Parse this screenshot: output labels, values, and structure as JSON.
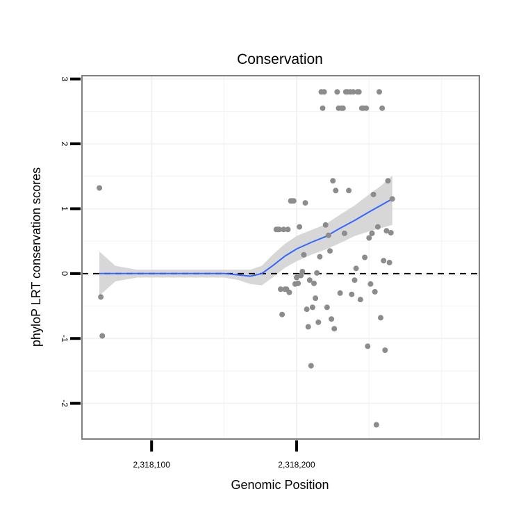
{
  "chart_data": {
    "type": "scatter",
    "title": "Conservation",
    "xlabel": "Genomic Position",
    "ylabel": "phyloP LRT conservation scores",
    "xlim": [
      2318052,
      2318326
    ],
    "ylim": [
      -2.55,
      3.05
    ],
    "x_ticks": [
      {
        "value": 2318100,
        "label": "2,318,100"
      },
      {
        "value": 2318200,
        "label": "2,318,200"
      }
    ],
    "y_ticks": [
      {
        "value": -2,
        "label": "-2"
      },
      {
        "value": -1,
        "label": "-1"
      },
      {
        "value": 0,
        "label": "0"
      },
      {
        "value": 1,
        "label": "1"
      },
      {
        "value": 2,
        "label": "2"
      },
      {
        "value": 3,
        "label": "3"
      }
    ],
    "grid": true,
    "reference_line": {
      "y": 0,
      "style": "dashed",
      "color": "#000000"
    },
    "colors": {
      "points": "#8c8c8c",
      "smooth_line": "#3366ff",
      "ribbon": "#d3d3d3",
      "grid": "#f2f2f2",
      "panel_border": "#7f7f7f"
    },
    "points": [
      {
        "x": 2318064,
        "y": 1.32
      },
      {
        "x": 2318065,
        "y": -0.36
      },
      {
        "x": 2318066,
        "y": -0.96
      },
      {
        "x": 2318186,
        "y": 0.68
      },
      {
        "x": 2318187,
        "y": 0.68
      },
      {
        "x": 2318188,
        "y": 0.68
      },
      {
        "x": 2318189,
        "y": -0.24
      },
      {
        "x": 2318190,
        "y": -0.63
      },
      {
        "x": 2318191,
        "y": 0.68
      },
      {
        "x": 2318192,
        "y": -0.24
      },
      {
        "x": 2318193,
        "y": -0.24
      },
      {
        "x": 2318194,
        "y": 0.68
      },
      {
        "x": 2318195,
        "y": -0.29
      },
      {
        "x": 2318196,
        "y": 1.12
      },
      {
        "x": 2318197,
        "y": 1.12
      },
      {
        "x": 2318198,
        "y": 1.12
      },
      {
        "x": 2318199,
        "y": -0.16
      },
      {
        "x": 2318200,
        "y": -0.06
      },
      {
        "x": 2318201,
        "y": -0.15
      },
      {
        "x": 2318202,
        "y": 0.72
      },
      {
        "x": 2318203,
        "y": -0.03
      },
      {
        "x": 2318204,
        "y": 0.03
      },
      {
        "x": 2318205,
        "y": 0.29
      },
      {
        "x": 2318206,
        "y": 1.09
      },
      {
        "x": 2318207,
        "y": -0.55
      },
      {
        "x": 2318208,
        "y": -0.82
      },
      {
        "x": 2318209,
        "y": -0.1
      },
      {
        "x": 2318210,
        "y": -1.42
      },
      {
        "x": 2318211,
        "y": -0.52
      },
      {
        "x": 2318212,
        "y": -0.15
      },
      {
        "x": 2318213,
        "y": -0.38
      },
      {
        "x": 2318214,
        "y": 0.01
      },
      {
        "x": 2318215,
        "y": -0.75
      },
      {
        "x": 2318216,
        "y": 0.26
      },
      {
        "x": 2318217,
        "y": 2.8
      },
      {
        "x": 2318218,
        "y": 2.55
      },
      {
        "x": 2318219,
        "y": 2.8
      },
      {
        "x": 2318220,
        "y": 0.75
      },
      {
        "x": 2318221,
        "y": -0.52
      },
      {
        "x": 2318222,
        "y": 0.59
      },
      {
        "x": 2318223,
        "y": 0.35
      },
      {
        "x": 2318224,
        "y": -0.7
      },
      {
        "x": 2318225,
        "y": 1.43
      },
      {
        "x": 2318226,
        "y": -0.85
      },
      {
        "x": 2318227,
        "y": 1.28
      },
      {
        "x": 2318228,
        "y": 2.8
      },
      {
        "x": 2318229,
        "y": 2.55
      },
      {
        "x": 2318230,
        "y": -0.3
      },
      {
        "x": 2318231,
        "y": 2.55
      },
      {
        "x": 2318232,
        "y": 2.55
      },
      {
        "x": 2318233,
        "y": 0.62
      },
      {
        "x": 2318234,
        "y": 2.8
      },
      {
        "x": 2318235,
        "y": 2.8
      },
      {
        "x": 2318236,
        "y": 1.28
      },
      {
        "x": 2318237,
        "y": 2.8
      },
      {
        "x": 2318238,
        "y": -0.32
      },
      {
        "x": 2318239,
        "y": 2.8
      },
      {
        "x": 2318240,
        "y": -0.1
      },
      {
        "x": 2318241,
        "y": 0.08
      },
      {
        "x": 2318242,
        "y": 2.8
      },
      {
        "x": 2318243,
        "y": 2.8
      },
      {
        "x": 2318244,
        "y": -0.4
      },
      {
        "x": 2318245,
        "y": 2.55
      },
      {
        "x": 2318246,
        "y": 2.55
      },
      {
        "x": 2318247,
        "y": 0.25
      },
      {
        "x": 2318248,
        "y": 2.55
      },
      {
        "x": 2318249,
        "y": -1.12
      },
      {
        "x": 2318250,
        "y": 0.55
      },
      {
        "x": 2318251,
        "y": -0.16
      },
      {
        "x": 2318252,
        "y": 0.62
      },
      {
        "x": 2318253,
        "y": 1.22
      },
      {
        "x": 2318254,
        "y": -0.28
      },
      {
        "x": 2318255,
        "y": -2.33
      },
      {
        "x": 2318256,
        "y": 0.72
      },
      {
        "x": 2318257,
        "y": 2.8
      },
      {
        "x": 2318258,
        "y": -0.68
      },
      {
        "x": 2318259,
        "y": 2.55
      },
      {
        "x": 2318260,
        "y": 0.2
      },
      {
        "x": 2318261,
        "y": -1.18
      },
      {
        "x": 2318262,
        "y": 0.66
      },
      {
        "x": 2318263,
        "y": 1.43
      },
      {
        "x": 2318264,
        "y": 0.17
      },
      {
        "x": 2318265,
        "y": 0.63
      },
      {
        "x": 2318266,
        "y": 1.15
      }
    ],
    "smooth": [
      {
        "x": 2318064,
        "y": 0.0,
        "ymin": -0.34,
        "ymax": 0.34
      },
      {
        "x": 2318075,
        "y": 0.0,
        "ymin": -0.12,
        "ymax": 0.12
      },
      {
        "x": 2318090,
        "y": 0.0,
        "ymin": -0.06,
        "ymax": 0.06
      },
      {
        "x": 2318110,
        "y": 0.0,
        "ymin": -0.06,
        "ymax": 0.06
      },
      {
        "x": 2318130,
        "y": 0.0,
        "ymin": -0.06,
        "ymax": 0.06
      },
      {
        "x": 2318150,
        "y": 0.0,
        "ymin": -0.06,
        "ymax": 0.06
      },
      {
        "x": 2318160,
        "y": -0.02,
        "ymin": -0.1,
        "ymax": 0.06
      },
      {
        "x": 2318168,
        "y": -0.04,
        "ymin": -0.16,
        "ymax": 0.06
      },
      {
        "x": 2318176,
        "y": 0.0,
        "ymin": -0.18,
        "ymax": 0.12
      },
      {
        "x": 2318184,
        "y": 0.13,
        "ymin": -0.05,
        "ymax": 0.3
      },
      {
        "x": 2318192,
        "y": 0.27,
        "ymin": 0.09,
        "ymax": 0.46
      },
      {
        "x": 2318200,
        "y": 0.38,
        "ymin": 0.19,
        "ymax": 0.58
      },
      {
        "x": 2318210,
        "y": 0.48,
        "ymin": 0.29,
        "ymax": 0.67
      },
      {
        "x": 2318220,
        "y": 0.57,
        "ymin": 0.37,
        "ymax": 0.76
      },
      {
        "x": 2318230,
        "y": 0.7,
        "ymin": 0.47,
        "ymax": 0.91
      },
      {
        "x": 2318240,
        "y": 0.82,
        "ymin": 0.58,
        "ymax": 1.05
      },
      {
        "x": 2318250,
        "y": 0.95,
        "ymin": 0.65,
        "ymax": 1.22
      },
      {
        "x": 2318258,
        "y": 1.05,
        "ymin": 0.7,
        "ymax": 1.35
      },
      {
        "x": 2318266,
        "y": 1.15,
        "ymin": 0.75,
        "ymax": 1.51
      }
    ]
  }
}
